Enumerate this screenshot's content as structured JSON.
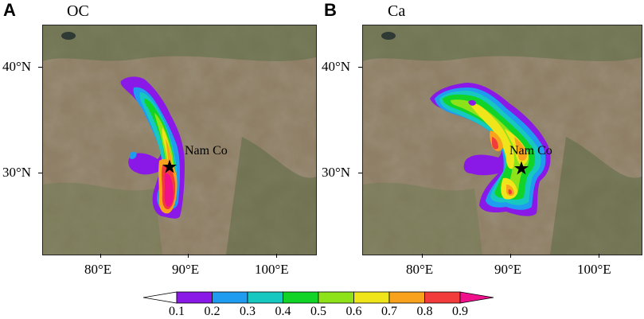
{
  "panels": [
    {
      "letter": "A",
      "variable": "OC",
      "station_label": "Nam Co"
    },
    {
      "letter": "B",
      "variable": "Ca",
      "station_label": "Nam Co"
    }
  ],
  "axes": {
    "lat_labels": [
      "40°N",
      "30°N"
    ],
    "lon_labels": [
      "80°E",
      "90°E",
      "100°E"
    ]
  },
  "colorbar": {
    "labels": [
      "0.1",
      "0.2",
      "0.3",
      "0.4",
      "0.5",
      "0.6",
      "0.7",
      "0.8",
      "0.9"
    ],
    "colors": [
      "#ffffff",
      "#8a18e6",
      "#1f9cf0",
      "#16c8c0",
      "#12d428",
      "#8ee21a",
      "#f0e41a",
      "#f8a21e",
      "#f23c3c",
      "#f0108c"
    ]
  },
  "map_colors": {
    "terrain_base": "#8f7f66",
    "terrain_green": "#5c6f47",
    "station_marker": "#000000"
  }
}
